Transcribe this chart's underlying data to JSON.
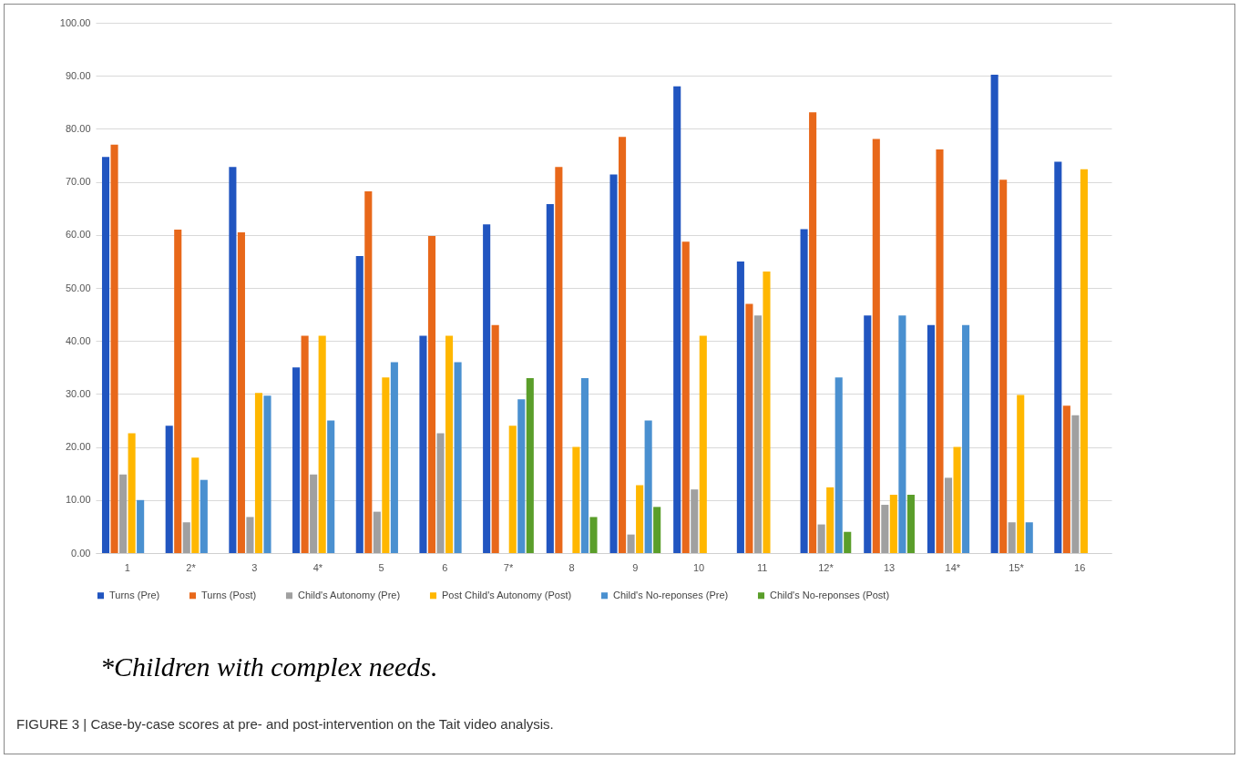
{
  "chart_data": {
    "type": "bar",
    "categories": [
      "1",
      "2*",
      "3",
      "4*",
      "5",
      "6",
      "7*",
      "8",
      "9",
      "10",
      "11",
      "12*",
      "13",
      "14*",
      "15*",
      "16"
    ],
    "series": [
      {
        "name": "Turns (Pre)",
        "color": "#2155c0",
        "values": [
          74.7,
          24,
          72.8,
          35,
          56,
          41,
          62,
          65.8,
          71.4,
          88,
          55,
          61.1,
          44.8,
          43,
          90.2,
          73.8
        ]
      },
      {
        "name": "Turns (Post)",
        "color": "#e8681a",
        "values": [
          77,
          61,
          60.5,
          41,
          68.2,
          59.8,
          43,
          72.8,
          78.5,
          58.7,
          47,
          83.1,
          78.1,
          76.1,
          70.4,
          27.8
        ]
      },
      {
        "name": "Child's Autonomy (Pre)",
        "color": "#a0a0a0",
        "values": [
          14.8,
          5.8,
          6.8,
          14.8,
          7.8,
          22.6,
          null,
          null,
          3.5,
          12,
          44.8,
          5.4,
          9.1,
          14.2,
          5.8,
          26
        ]
      },
      {
        "name": "Post Child's Autonomy (Post)",
        "color": "#ffb700",
        "values": [
          22.6,
          18,
          30.2,
          41,
          33.1,
          41,
          24,
          20,
          12.8,
          41,
          53.1,
          12.4,
          11,
          20,
          29.8,
          72.4
        ]
      },
      {
        "name": "Child's No-reponses (Pre)",
        "color": "#4a90d0",
        "values": [
          10,
          13.8,
          29.7,
          25,
          36,
          36,
          29,
          33,
          25,
          null,
          null,
          33.1,
          44.8,
          43,
          5.8,
          null
        ]
      },
      {
        "name": "Child's No-reponses (Post)",
        "color": "#5a9e2a",
        "values": [
          null,
          null,
          null,
          null,
          null,
          null,
          33,
          6.8,
          8.7,
          null,
          null,
          4,
          11,
          null,
          null,
          null
        ]
      }
    ],
    "ylim": [
      0,
      100
    ],
    "yticks": [
      {
        "value": 0,
        "label": "0.00"
      },
      {
        "value": 10,
        "label": "10.00"
      },
      {
        "value": 20,
        "label": "20.00"
      },
      {
        "value": 30,
        "label": "30.00"
      },
      {
        "value": 40,
        "label": "40.00"
      },
      {
        "value": 50,
        "label": "50.00"
      },
      {
        "value": 60,
        "label": "60.00"
      },
      {
        "value": 70,
        "label": "70.00"
      },
      {
        "value": 80,
        "label": "80.00"
      },
      {
        "value": 90,
        "label": "90.00"
      },
      {
        "value": 100,
        "label": "100.00"
      }
    ],
    "grid": "y",
    "legend": "bottom",
    "annotations": [
      "*Children with complex needs.",
      "FIGURE 3 | Case-by-case scores at pre- and post-intervention on the Tait video analysis."
    ]
  }
}
